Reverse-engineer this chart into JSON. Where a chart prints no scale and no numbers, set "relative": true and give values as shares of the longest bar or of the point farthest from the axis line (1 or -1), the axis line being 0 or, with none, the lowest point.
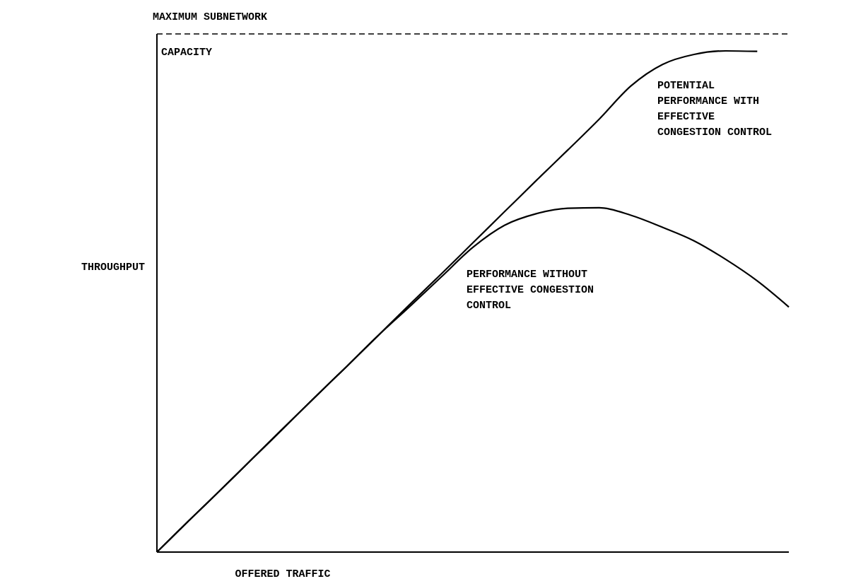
{
  "chart_data": {
    "type": "line",
    "relative": true,
    "xlabel": "OFFERED TRAFFIC",
    "ylabel": "THROUGHPUT",
    "categories": [
      null,
      null,
      null,
      null,
      null,
      null,
      null,
      null,
      null,
      null,
      null,
      null,
      null,
      null,
      null,
      null,
      null,
      null,
      null,
      null,
      null
    ],
    "series": [
      {
        "name": "POTENTIAL PERFORMANCE WITH EFFECTIVE CONGESTION CONTROL",
        "color": "#000000",
        "values": [
          0,
          0.062,
          0.123,
          0.185,
          0.247,
          0.309,
          0.37,
          0.432,
          0.494,
          0.555,
          0.617,
          0.679,
          0.741,
          0.802,
          0.864,
          0.93,
          0.973,
          0.993,
          1,
          0.999,
          null
        ]
      },
      {
        "name": "PERFORMANCE WITHOUT EFFECTIVE CONGESTION CONTROL",
        "color": "#000000",
        "values": [
          0,
          0.062,
          0.123,
          0.185,
          0.247,
          0.309,
          0.37,
          0.432,
          0.49,
          0.549,
          0.608,
          0.652,
          0.675,
          0.686,
          0.687,
          0.672,
          0.648,
          0.621,
          0.584,
          0.541,
          0.489
        ]
      }
    ],
    "ref_lines": [
      {
        "axis": "y",
        "value": 1.034,
        "label": "MAXIMUM SUBNETWORK CAPACITY",
        "line_style": "dashed",
        "color": "#000000"
      }
    ],
    "marker": "none",
    "line_style": "solid"
  }
}
